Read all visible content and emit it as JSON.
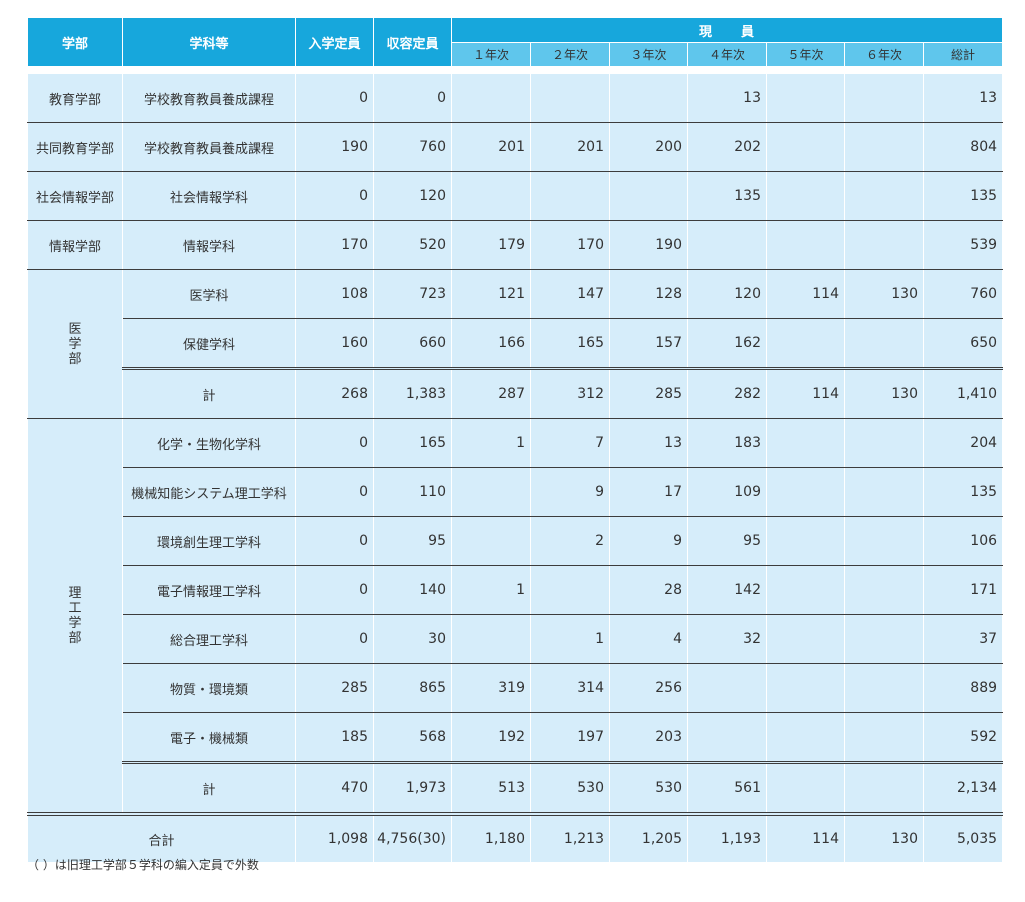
{
  "headers": {
    "faculty": "学部",
    "department": "学科等",
    "admission": "入学定員",
    "capacity": "収容定員",
    "current": "現　　員",
    "years": [
      "１年次",
      "２年次",
      "３年次",
      "４年次",
      "５年次",
      "６年次",
      "総計"
    ]
  },
  "rows": [
    {
      "faculty": "教育学部",
      "dept": "学校教育教員養成課程",
      "v": [
        "0",
        "0",
        "",
        "",
        "",
        "13",
        "",
        "",
        "13"
      ]
    },
    {
      "faculty": "共同教育学部",
      "dept": "学校教育教員養成課程",
      "v": [
        "190",
        "760",
        "201",
        "201",
        "200",
        "202",
        "",
        "",
        "804"
      ]
    },
    {
      "faculty": "社会情報学部",
      "dept": "社会情報学科",
      "v": [
        "0",
        "120",
        "",
        "",
        "",
        "135",
        "",
        "",
        "135"
      ]
    },
    {
      "faculty": "情報学部",
      "dept": "情報学科",
      "v": [
        "170",
        "520",
        "179",
        "170",
        "190",
        "",
        "",
        "",
        "539"
      ]
    }
  ],
  "medical": {
    "faculty": "医学部",
    "rows": [
      {
        "dept": "医学科",
        "v": [
          "108",
          "723",
          "121",
          "147",
          "128",
          "120",
          "114",
          "130",
          "760"
        ]
      },
      {
        "dept": "保健学科",
        "v": [
          "160",
          "660",
          "166",
          "165",
          "157",
          "162",
          "",
          "",
          "650"
        ]
      },
      {
        "dept": "計",
        "v": [
          "268",
          "1,383",
          "287",
          "312",
          "285",
          "282",
          "114",
          "130",
          "1,410"
        ]
      }
    ]
  },
  "science": {
    "faculty": "理工学部",
    "rows": [
      {
        "dept": "化学・生物化学科",
        "v": [
          "0",
          "165",
          "1",
          "7",
          "13",
          "183",
          "",
          "",
          "204"
        ]
      },
      {
        "dept": "機械知能システム理工学科",
        "v": [
          "0",
          "110",
          "",
          "9",
          "17",
          "109",
          "",
          "",
          "135"
        ]
      },
      {
        "dept": "環境創生理工学科",
        "v": [
          "0",
          "95",
          "",
          "2",
          "9",
          "95",
          "",
          "",
          "106"
        ]
      },
      {
        "dept": "電子情報理工学科",
        "v": [
          "0",
          "140",
          "1",
          "",
          "28",
          "142",
          "",
          "",
          "171"
        ]
      },
      {
        "dept": "総合理工学科",
        "v": [
          "0",
          "30",
          "",
          "1",
          "4",
          "32",
          "",
          "",
          "37"
        ]
      },
      {
        "dept": "物質・環境類",
        "v": [
          "285",
          "865",
          "319",
          "314",
          "256",
          "",
          "",
          "",
          "889"
        ]
      },
      {
        "dept": "電子・機械類",
        "v": [
          "185",
          "568",
          "192",
          "197",
          "203",
          "",
          "",
          "",
          "592"
        ]
      },
      {
        "dept": "計",
        "v": [
          "470",
          "1,973",
          "513",
          "530",
          "530",
          "561",
          "",
          "",
          "2,134"
        ]
      }
    ]
  },
  "total": {
    "label": "合計",
    "v": [
      "1,098",
      "4,756(30)",
      "1,180",
      "1,213",
      "1,205",
      "1,193",
      "114",
      "130",
      "5,035"
    ]
  },
  "note": "（ ）は旧理工学部５学科の編入定員で外数"
}
